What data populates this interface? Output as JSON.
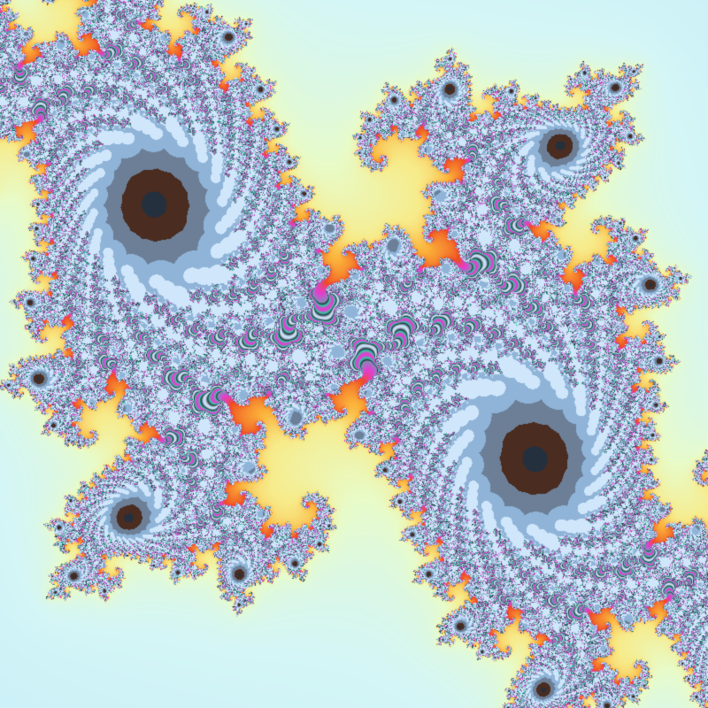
{
  "image": {
    "subject": "julia-set-fractal-render",
    "palette": {
      "outer_far": "#bfe6fb",
      "outer_near": "#d4f6f6",
      "glow_pale": "#e8fbc8",
      "glow_yellow": "#f7eb8a",
      "glow_orange": "#fbb23a",
      "edge_red": "#ee4b20",
      "detail_dark": "#24303e",
      "detail_light": "#cfe6fb",
      "spiral_accent_1": "#e43ed0",
      "spiral_accent_2": "#2fd0a8",
      "core_brown": "#4a2c20"
    }
  }
}
